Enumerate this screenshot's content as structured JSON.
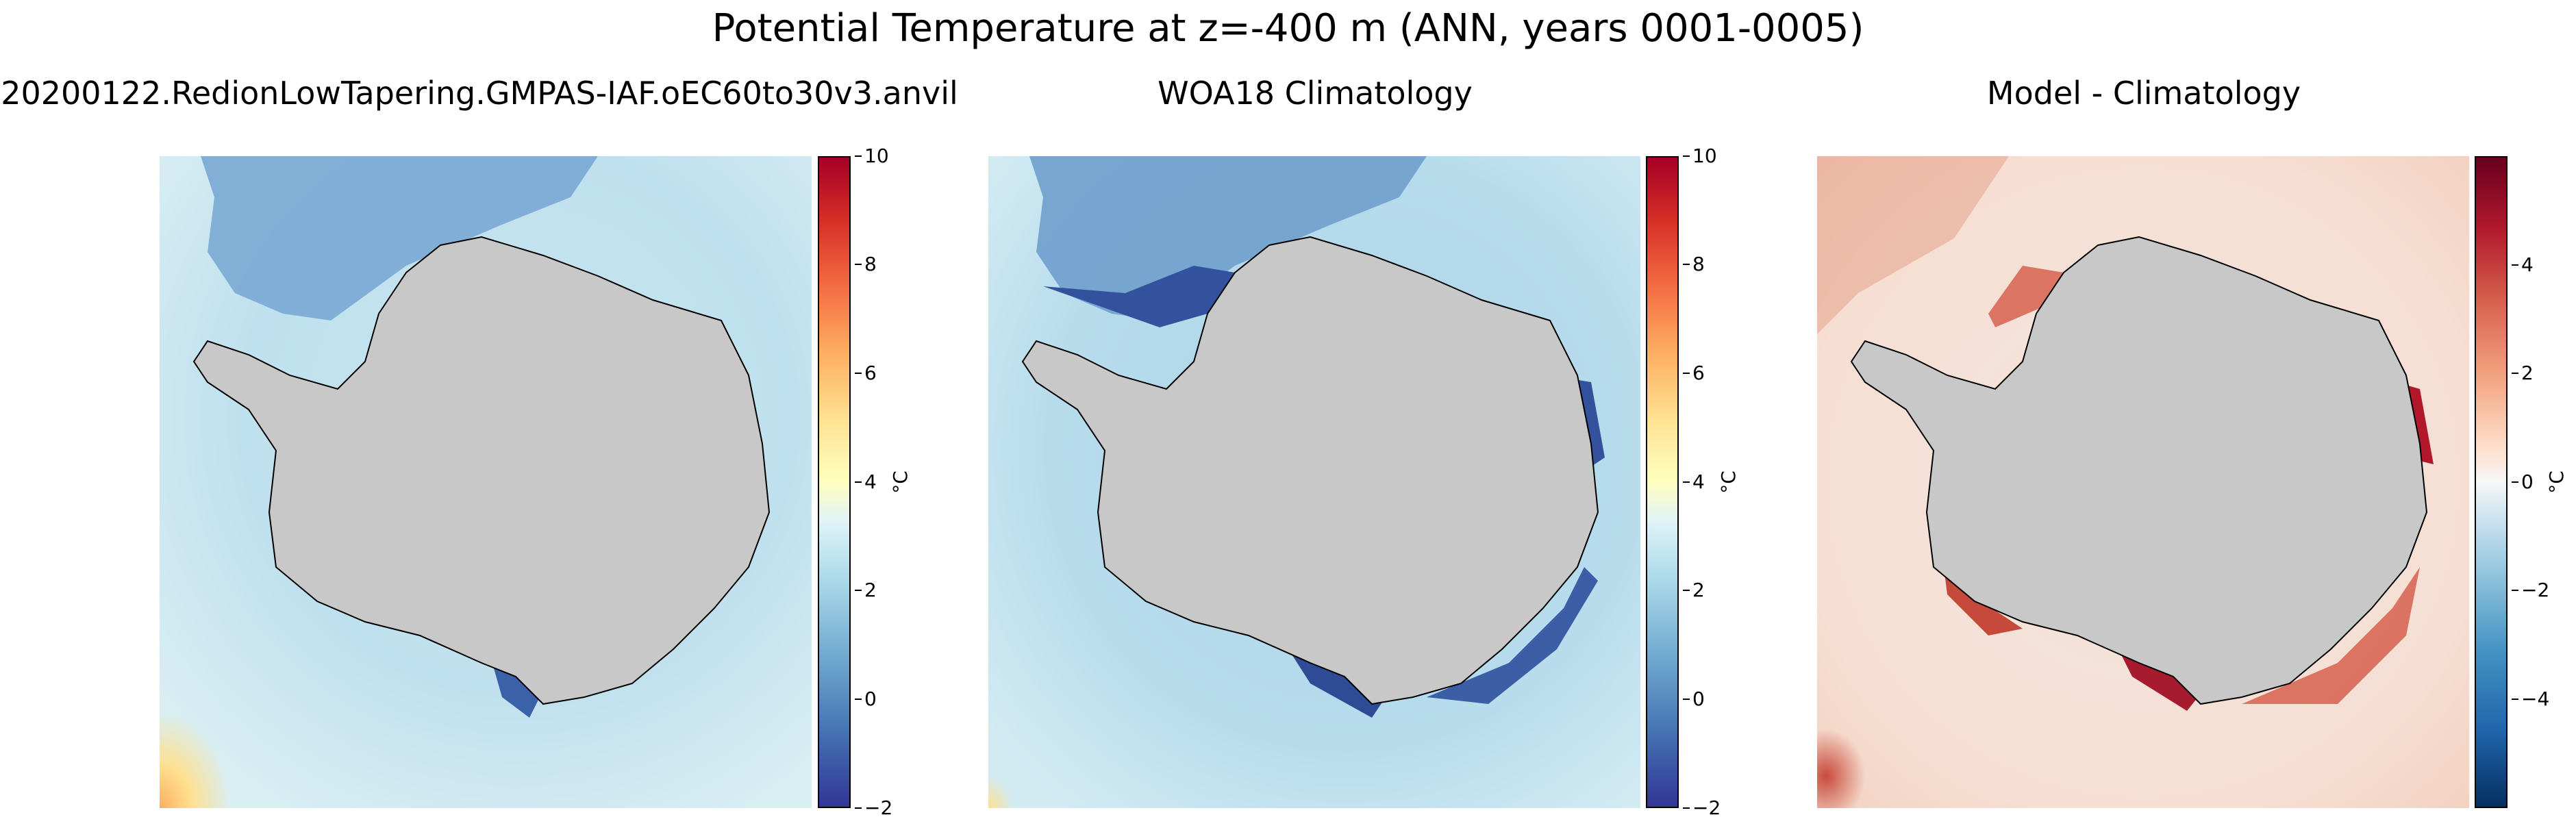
{
  "figure": {
    "title": "Potential Temperature at z=-400 m (ANN, years 0001-0005)"
  },
  "panels": [
    {
      "title": "20200122.RedionLowTapering.GMPAS-IAF.oEC60to30v3.anvil",
      "colorbar": {
        "ticks": [
          "10",
          "8",
          "6",
          "4",
          "2",
          "0",
          "−2"
        ],
        "unit": "°C"
      }
    },
    {
      "title": "WOA18 Climatology",
      "colorbar": {
        "ticks": [
          "10",
          "8",
          "6",
          "4",
          "2",
          "0",
          "−2"
        ],
        "unit": "°C"
      }
    },
    {
      "title": "Model - Climatology",
      "colorbar": {
        "ticks": [
          "4",
          "2",
          "0",
          "−2",
          "−4"
        ],
        "unit": "°C"
      }
    }
  ],
  "colormaps": {
    "temperature": "RdYlBu_r",
    "difference": "RdBu_r"
  },
  "colors": {
    "land": "#c8c8c8",
    "coastline": "#000000"
  }
}
